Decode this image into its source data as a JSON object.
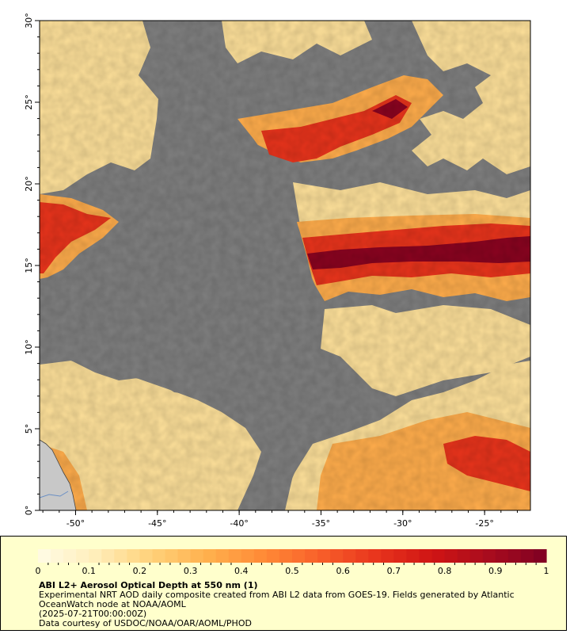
{
  "map": {
    "ocean_color": "#7f7f7f",
    "land_color": "#c8c8c8",
    "lon_ticks": [
      {
        "value": -50,
        "label": "-50°"
      },
      {
        "value": -45,
        "label": "-45°"
      },
      {
        "value": -40,
        "label": "-40°"
      },
      {
        "value": -35,
        "label": "-35°"
      },
      {
        "value": -30,
        "label": "-30°"
      },
      {
        "value": -25,
        "label": "-25°"
      }
    ],
    "lat_ticks": [
      {
        "value": 0,
        "label": "0°"
      },
      {
        "value": 5,
        "label": "5°"
      },
      {
        "value": 10,
        "label": "10°"
      },
      {
        "value": 15,
        "label": "15°"
      },
      {
        "value": 20,
        "label": "20°"
      },
      {
        "value": 25,
        "label": "25°"
      },
      {
        "value": 30,
        "label": "30°"
      }
    ],
    "lon_range": [
      -52.2,
      -22.2
    ],
    "lat_range": [
      0,
      30
    ]
  },
  "legend": {
    "title": "ABI L2+ Aerosol Optical Depth at 550 nm (1)",
    "description": "Experimental NRT AOD daily composite created from ABI L2 data from GOES-19. Fields generated by Atlantic OceanWatch node at NOAA/AOML",
    "date": "(2025-07-21T00:00:00Z)",
    "credit": "Data courtesy of USDOC/NOAA/OAR/AOML/PHOD",
    "colorbar": {
      "min": 0,
      "max": 1,
      "tick_labels": [
        "0",
        "0.1",
        "0.2",
        "0.3",
        "0.4",
        "0.5",
        "0.6",
        "0.7",
        "0.8",
        "0.9",
        "1"
      ],
      "colors": [
        "#fffbe6",
        "#ffeebb",
        "#ffd27a",
        "#ffb04d",
        "#ff8a36",
        "#f85f2a",
        "#e8341c",
        "#cf1414",
        "#a70c1e",
        "#7f0022"
      ]
    }
  }
}
